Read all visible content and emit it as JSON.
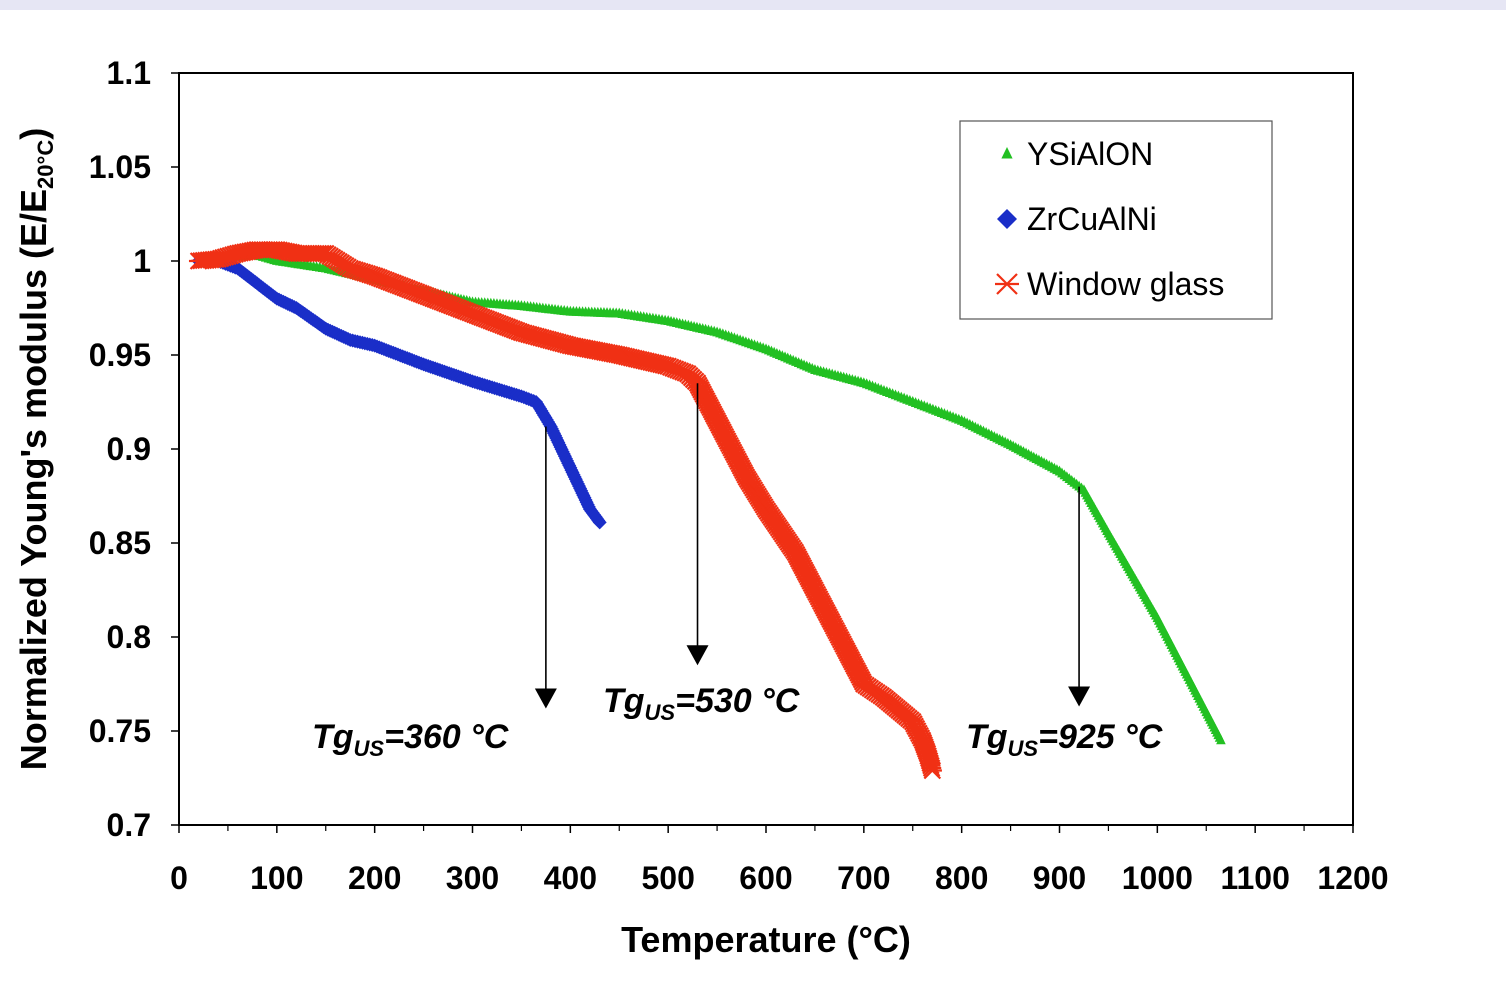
{
  "chart_data": {
    "type": "scatter",
    "title": "",
    "xlabel": "Temperature (°C)",
    "ylabel_main": "Normalized Young's modulus (E/E",
    "ylabel_sub": "20°C",
    "ylabel_close": ")",
    "xlim": [
      0,
      1200
    ],
    "ylim": [
      0.7,
      1.1
    ],
    "x_ticks": [
      0,
      100,
      200,
      300,
      400,
      500,
      600,
      700,
      800,
      900,
      1000,
      1100,
      1200
    ],
    "x_tick_labels": [
      "0",
      "100",
      "200",
      "300",
      "400",
      "500",
      "600",
      "700",
      "800",
      "900",
      "1000",
      "1100",
      "1200"
    ],
    "y_ticks": [
      0.7,
      0.75,
      0.8,
      0.85,
      0.9,
      0.95,
      1.0,
      1.05,
      1.1
    ],
    "y_tick_labels": [
      "0.7",
      "0.75",
      "0.8",
      "0.85",
      "0.9",
      "0.95",
      "1",
      "1.05",
      "1.1"
    ],
    "grid": false,
    "legend_position": "top-right",
    "series": [
      {
        "name": "YSiAlON",
        "marker": "triangle",
        "color": "#22c022",
        "x": [
          20,
          50,
          80,
          100,
          150,
          200,
          250,
          300,
          350,
          400,
          450,
          500,
          550,
          600,
          650,
          700,
          750,
          800,
          850,
          900,
          925,
          950,
          1000,
          1050,
          1065
        ],
        "y": [
          1.0,
          1.002,
          1.003,
          1.0,
          0.996,
          0.99,
          0.984,
          0.978,
          0.976,
          0.973,
          0.972,
          0.968,
          0.962,
          0.953,
          0.942,
          0.935,
          0.925,
          0.915,
          0.902,
          0.888,
          0.878,
          0.855,
          0.81,
          0.76,
          0.745
        ]
      },
      {
        "name": "ZrCuAlNi",
        "marker": "diamond",
        "color": "#1a2ec8",
        "x": [
          20,
          40,
          60,
          80,
          100,
          120,
          150,
          175,
          200,
          250,
          300,
          350,
          365,
          380,
          400,
          420,
          430
        ],
        "y": [
          1.0,
          1.0,
          0.996,
          0.988,
          0.98,
          0.975,
          0.964,
          0.958,
          0.955,
          0.945,
          0.936,
          0.928,
          0.925,
          0.912,
          0.89,
          0.868,
          0.861
        ]
      },
      {
        "name": "Window glass",
        "marker": "asterisk",
        "color": "#f03014",
        "x": [
          20,
          40,
          60,
          80,
          100,
          120,
          150,
          175,
          200,
          250,
          300,
          350,
          400,
          450,
          500,
          520,
          530,
          550,
          580,
          600,
          630,
          650,
          680,
          700,
          720,
          750,
          760,
          765,
          770
        ],
        "y": [
          1.0,
          1.001,
          1.004,
          1.006,
          1.006,
          1.004,
          1.004,
          0.996,
          0.992,
          0.982,
          0.972,
          0.962,
          0.955,
          0.95,
          0.944,
          0.94,
          0.935,
          0.915,
          0.885,
          0.868,
          0.845,
          0.825,
          0.795,
          0.775,
          0.768,
          0.755,
          0.745,
          0.738,
          0.729
        ]
      }
    ],
    "annotations": [
      {
        "label": "Tg",
        "sub": "US",
        "value_text": "=360 °C",
        "arrow_x": 375,
        "arrow_y_from": 0.912,
        "arrow_y_to": 0.762
      },
      {
        "label": "Tg",
        "sub": "US",
        "value_text": "=530 °C",
        "arrow_x": 530,
        "arrow_y_from": 0.935,
        "arrow_y_to": 0.785
      },
      {
        "label": "Tg",
        "sub": "US",
        "value_text": "=925 °C",
        "arrow_x": 920,
        "arrow_y_from": 0.88,
        "arrow_y_to": 0.763
      }
    ]
  }
}
